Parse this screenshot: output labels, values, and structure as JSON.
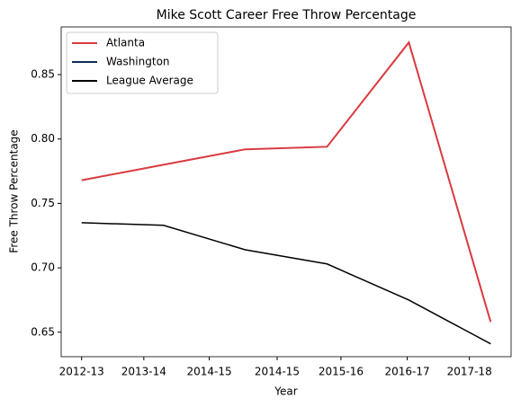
{
  "chart_data": {
    "type": "line",
    "title": "Mike Scott  Career Free Throw Percentage",
    "xlabel": "Year",
    "ylabel": "Free Throw Percentage",
    "x": [
      0,
      1,
      2,
      3,
      4,
      5
    ],
    "series": [
      {
        "name": "Atlanta",
        "color": "#d93a40",
        "width": 2,
        "values": [
          0.768,
          0.78,
          0.792,
          0.794,
          0.875,
          0.658
        ]
      },
      {
        "name": "Washington",
        "color": "#0c2c56",
        "width": 2,
        "values": [
          null,
          null,
          null,
          null,
          null,
          null
        ]
      },
      {
        "name": "League Average",
        "color": "#000000",
        "width": 1.5,
        "values": [
          0.735,
          0.733,
          0.714,
          0.703,
          0.675,
          0.641
        ]
      }
    ],
    "xlim": [
      -0.25,
      5.25
    ],
    "xticks": [
      {
        "value": 0,
        "label": "2012-13"
      },
      {
        "value": 0.76,
        "label": "2013-14"
      },
      {
        "value": 1.56,
        "label": "2014-15"
      },
      {
        "value": 2.39,
        "label": "2014-15"
      },
      {
        "value": 3.17,
        "label": "2015-16"
      },
      {
        "value": 3.98,
        "label": "2016-17"
      },
      {
        "value": 4.74,
        "label": "2017-18"
      }
    ],
    "ylim": [
      0.631,
      0.887
    ],
    "yticks": [
      {
        "value": 0.65,
        "label": "0.65"
      },
      {
        "value": 0.7,
        "label": "0.70"
      },
      {
        "value": 0.75,
        "label": "0.75"
      },
      {
        "value": 0.8,
        "label": "0.80"
      },
      {
        "value": 0.85,
        "label": "0.85"
      }
    ],
    "legend": "upper left",
    "grid": false
  }
}
